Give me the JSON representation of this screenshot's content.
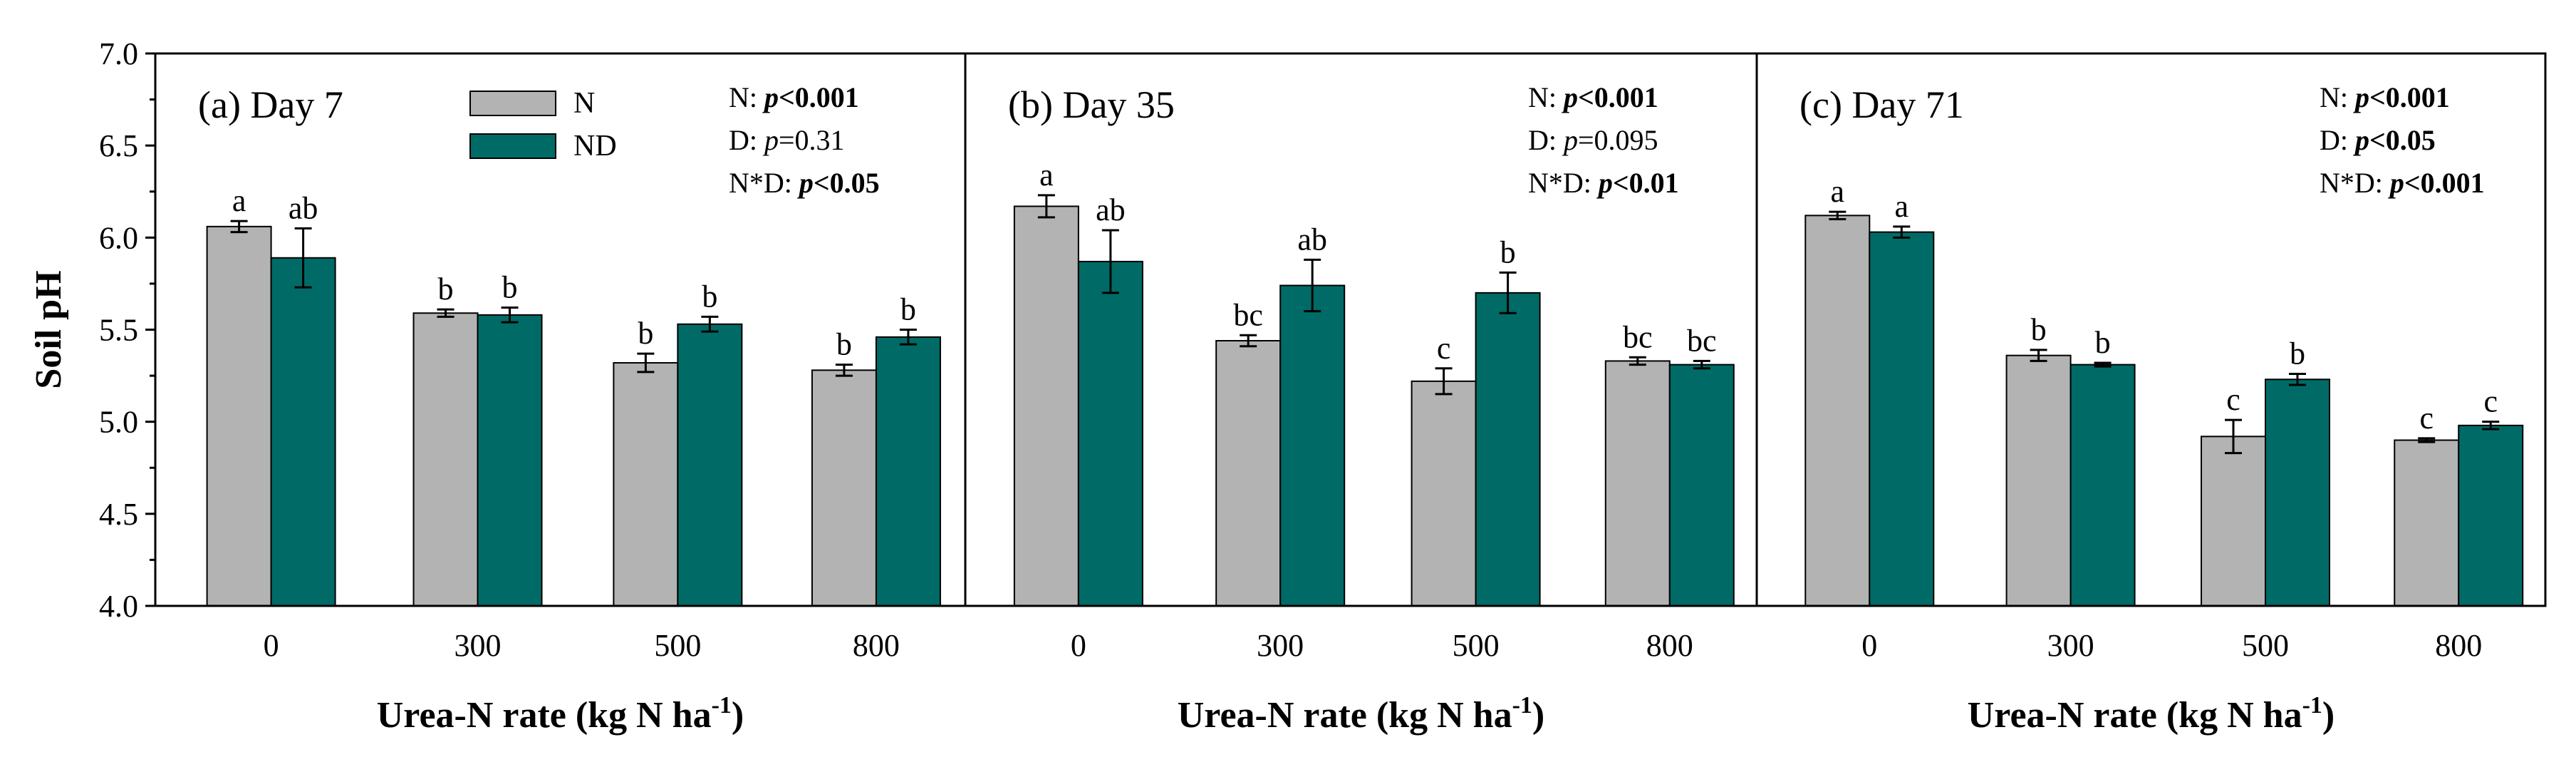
{
  "chart_data": [
    {
      "type": "bar",
      "title": "(a) Day 7",
      "xlabel": "Urea-N rate (kg N ha",
      "xlabel_sup": "-1",
      "xlabel_end": ")",
      "ylabel": "Soil pH",
      "ylim": [
        4.0,
        7.0
      ],
      "yticks": [
        "4.0",
        "4.5",
        "5.0",
        "5.5",
        "6.0",
        "6.5",
        "7.0"
      ],
      "categories": [
        "0",
        "300",
        "500",
        "800"
      ],
      "series": [
        {
          "name": "N",
          "color": "#b3b3b3",
          "values": [
            6.06,
            5.59,
            5.32,
            5.28
          ],
          "errors": [
            0.03,
            0.02,
            0.05,
            0.03
          ],
          "letters": [
            "a",
            "b",
            "b",
            "b"
          ]
        },
        {
          "name": "ND",
          "color": "#006b66",
          "values": [
            5.89,
            5.58,
            5.53,
            5.46
          ],
          "errors": [
            0.16,
            0.04,
            0.04,
            0.04
          ],
          "letters": [
            "ab",
            "b",
            "b",
            "b"
          ]
        }
      ],
      "stats": [
        {
          "label": "N: ",
          "p": "p",
          "rel": "<0.001",
          "bold": true
        },
        {
          "label": "D: ",
          "p": "p",
          "rel": "=0.31",
          "bold": false
        },
        {
          "label": "N*D: ",
          "p": "p",
          "rel": "<0.05",
          "bold": true
        }
      ]
    },
    {
      "type": "bar",
      "title": "(b) Day 35",
      "xlabel": "Urea-N rate (kg N ha",
      "xlabel_sup": "-1",
      "xlabel_end": ")",
      "ylim": [
        4.0,
        7.0
      ],
      "categories": [
        "0",
        "300",
        "500",
        "800"
      ],
      "series": [
        {
          "name": "N",
          "color": "#b3b3b3",
          "values": [
            6.17,
            5.44,
            5.22,
            5.33
          ],
          "errors": [
            0.06,
            0.03,
            0.07,
            0.02
          ],
          "letters": [
            "a",
            "bc",
            "c",
            "bc"
          ]
        },
        {
          "name": "ND",
          "color": "#006b66",
          "values": [
            5.87,
            5.74,
            5.7,
            5.31
          ],
          "errors": [
            0.17,
            0.14,
            0.11,
            0.02
          ],
          "letters": [
            "ab",
            "ab",
            "b",
            "bc"
          ]
        }
      ],
      "stats": [
        {
          "label": "N: ",
          "p": "p",
          "rel": "<0.001",
          "bold": true
        },
        {
          "label": "D: ",
          "p": "p",
          "rel": "=0.095",
          "bold": false
        },
        {
          "label": "N*D: ",
          "p": "p",
          "rel": "<0.01",
          "bold": true
        }
      ]
    },
    {
      "type": "bar",
      "title": "(c) Day 71",
      "xlabel": "Urea-N rate (kg N ha",
      "xlabel_sup": "-1",
      "xlabel_end": ")",
      "ylim": [
        4.0,
        7.0
      ],
      "categories": [
        "0",
        "300",
        "500",
        "800"
      ],
      "series": [
        {
          "name": "N",
          "color": "#b3b3b3",
          "values": [
            6.12,
            5.36,
            4.92,
            4.9
          ],
          "errors": [
            0.02,
            0.03,
            0.09,
            0.01
          ],
          "letters": [
            "a",
            "b",
            "c",
            "c"
          ]
        },
        {
          "name": "ND",
          "color": "#006b66",
          "values": [
            6.03,
            5.31,
            5.23,
            4.98
          ],
          "errors": [
            0.03,
            0.01,
            0.03,
            0.02
          ],
          "letters": [
            "a",
            "b",
            "b",
            "c"
          ]
        }
      ],
      "stats": [
        {
          "label": "N: ",
          "p": "p",
          "rel": "<0.001",
          "bold": true
        },
        {
          "label": "D: ",
          "p": "p",
          "rel": "<0.05",
          "bold": true
        },
        {
          "label": "N*D: ",
          "p": "p",
          "rel": "<0.001",
          "bold": true
        }
      ]
    }
  ],
  "legend": {
    "n_label": "N",
    "nd_label": "ND",
    "n_color": "#b3b3b3",
    "nd_color": "#006b66"
  }
}
